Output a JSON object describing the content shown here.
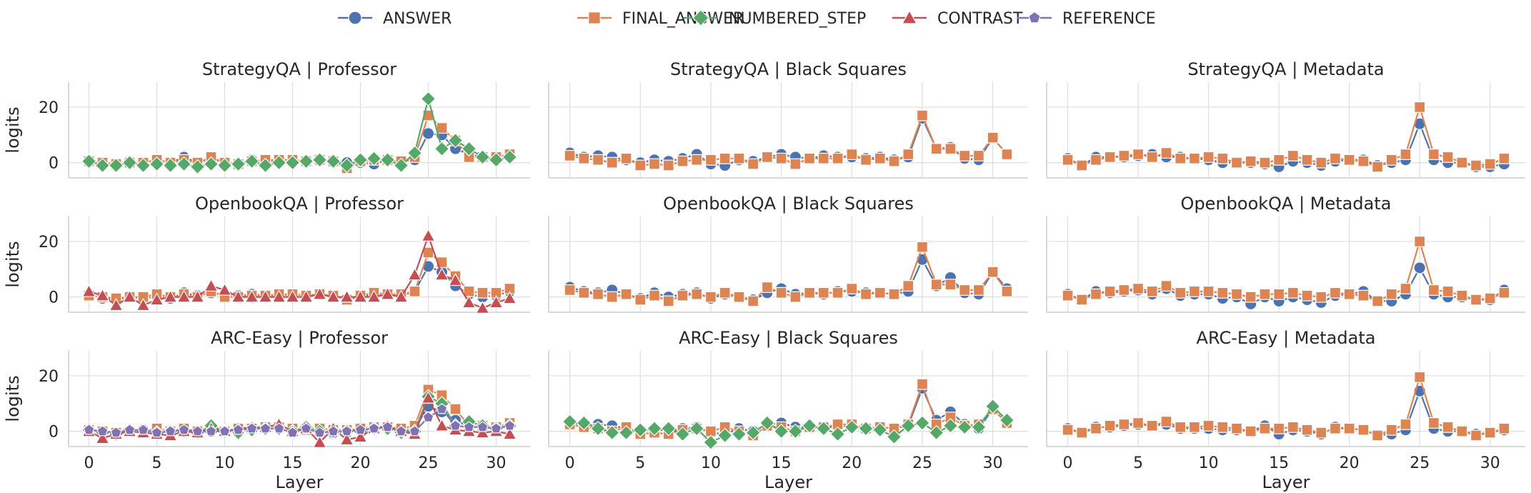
{
  "colors": {
    "ANSWER": "#4c72b0",
    "FINAL_ANSWER": "#dd8452",
    "NUMBERED_STEP": "#55a868",
    "CONTRAST": "#c44e52",
    "REFERENCE": "#8172b3",
    "grid": "#dddddd",
    "axis": "#cccccc"
  },
  "legend": [
    {
      "name": "ANSWER",
      "marker": "circle"
    },
    {
      "name": "FINAL_ANSWER",
      "marker": "square"
    },
    {
      "name": "NUMBERED_STEP",
      "marker": "diamond"
    },
    {
      "name": "CONTRAST",
      "marker": "triangle"
    },
    {
      "name": "REFERENCE",
      "marker": "pentagon"
    }
  ],
  "chart_data": [
    {
      "type": "line",
      "title": "StrategyQA | Professor",
      "xlabel": "",
      "ylabel": "logits",
      "xlim": [
        -1.5,
        32.5
      ],
      "ylim": [
        -5.5,
        29
      ],
      "xticks": [
        0,
        5,
        10,
        15,
        20,
        25,
        30
      ],
      "yticks": [
        0,
        20
      ],
      "grid": true,
      "series": [
        {
          "name": "ANSWER",
          "values": [
            0.5,
            0,
            -0.5,
            0,
            0,
            1,
            0,
            2,
            0,
            1.5,
            0,
            -0.5,
            1,
            0,
            1,
            1,
            0.5,
            1,
            0.5,
            0,
            0,
            -0.5,
            1,
            0.5,
            1,
            10.5,
            10,
            5,
            3,
            2,
            1,
            2
          ]
        },
        {
          "name": "FINAL_ANSWER",
          "values": [
            0.5,
            0,
            -0.5,
            0,
            0,
            1,
            0,
            1,
            0,
            2,
            0,
            -0.5,
            0.5,
            1,
            1,
            1,
            0.5,
            1,
            0.5,
            -2,
            0.5,
            1,
            1,
            0.5,
            2,
            17,
            12.5,
            8,
            2,
            2,
            2,
            3
          ]
        },
        {
          "name": "NUMBERED_STEP",
          "values": [
            0.5,
            -1,
            -1,
            0,
            -1,
            -0.5,
            -1,
            -0.5,
            -1.5,
            -0.5,
            -1,
            -0.5,
            0.5,
            -1,
            0,
            0,
            0.5,
            1,
            0.5,
            -1,
            1,
            1.5,
            1,
            -1,
            3.5,
            23,
            5,
            8,
            5,
            2,
            1,
            2
          ]
        }
      ]
    },
    {
      "type": "line",
      "title": "StrategyQA | Black Squares",
      "xlabel": "",
      "ylabel": "",
      "xlim": [
        -1.5,
        32.5
      ],
      "ylim": [
        -5.5,
        29
      ],
      "xticks": [
        0,
        5,
        10,
        15,
        20,
        25,
        30
      ],
      "yticks": [
        0,
        20
      ],
      "grid": true,
      "series": [
        {
          "name": "ANSWER",
          "values": [
            3.5,
            2,
            2.5,
            2,
            1,
            0,
            1,
            0.5,
            1.5,
            3,
            -0.5,
            -1,
            1,
            0.5,
            2,
            3,
            2,
            1.5,
            2.5,
            2,
            2,
            1.5,
            2,
            1,
            2,
            16,
            5,
            5.5,
            1.5,
            1,
            9,
            3
          ]
        },
        {
          "name": "FINAL_ANSWER",
          "values": [
            2.5,
            1.5,
            1,
            0,
            1.5,
            -1,
            -0.5,
            -1,
            0.5,
            1,
            1,
            1.5,
            1.5,
            -0.5,
            2,
            1.5,
            -0.5,
            1.5,
            1.5,
            1.5,
            3,
            1,
            1.5,
            0.5,
            3,
            17,
            5,
            5,
            2.5,
            2.5,
            9,
            3
          ]
        }
      ]
    },
    {
      "type": "line",
      "title": "StrategyQA | Metadata",
      "xlabel": "",
      "ylabel": "",
      "xlim": [
        -1.5,
        32.5
      ],
      "ylim": [
        -5.5,
        29
      ],
      "xticks": [
        0,
        5,
        10,
        15,
        20,
        25,
        30
      ],
      "yticks": [
        0,
        20
      ],
      "grid": true,
      "series": [
        {
          "name": "ANSWER",
          "values": [
            1.5,
            -1,
            2,
            2,
            2,
            2.5,
            3,
            2,
            2,
            1.5,
            1,
            0,
            0,
            0,
            -0.5,
            -1.5,
            0.5,
            0,
            -1,
            0.5,
            1,
            1,
            -1,
            0,
            1,
            14,
            1,
            0,
            0,
            -1.5,
            -1.5,
            -0.5
          ]
        },
        {
          "name": "FINAL_ANSWER",
          "values": [
            1,
            -1,
            1,
            2,
            2.5,
            3,
            2,
            3.5,
            1.5,
            1.5,
            2,
            1.5,
            0,
            0.5,
            0,
            1,
            2.5,
            1,
            0,
            1.5,
            1,
            0.5,
            -1.5,
            1,
            3,
            20,
            3,
            2,
            0,
            -1,
            -0.5,
            1.5
          ]
        }
      ]
    },
    {
      "type": "line",
      "title": "OpenbookQA | Professor",
      "xlabel": "",
      "ylabel": "logits",
      "xlim": [
        -1.5,
        32.5
      ],
      "ylim": [
        -5.5,
        29
      ],
      "xticks": [
        0,
        5,
        10,
        15,
        20,
        25,
        30
      ],
      "yticks": [
        0,
        20
      ],
      "grid": true,
      "series": [
        {
          "name": "ANSWER",
          "values": [
            1,
            -0.5,
            -1,
            0,
            -0.5,
            0,
            -0.5,
            1.5,
            0.5,
            1.5,
            1,
            0.5,
            1,
            0.5,
            0.5,
            1,
            0.5,
            1,
            0.5,
            -1,
            0,
            1,
            1,
            0.5,
            2,
            11,
            9,
            4,
            1,
            0,
            0.5,
            2
          ]
        },
        {
          "name": "FINAL_ANSWER",
          "values": [
            0.5,
            0,
            -0.5,
            0,
            0,
            1,
            0,
            1,
            0,
            2,
            0,
            0,
            0.5,
            0.5,
            1,
            1,
            0.5,
            1,
            0.5,
            -1,
            0.5,
            1.5,
            1,
            1,
            2,
            16,
            12.5,
            7.5,
            2,
            1.5,
            1.5,
            3
          ]
        },
        {
          "name": "CONTRAST",
          "values": [
            2,
            0.5,
            -3,
            0,
            -3,
            -1,
            0,
            0,
            0,
            4,
            2.5,
            0,
            0,
            0,
            0,
            0,
            0,
            1,
            0,
            0,
            0,
            0,
            1,
            0,
            8,
            22,
            8,
            6,
            -2,
            -4,
            -2,
            -0.5
          ]
        }
      ]
    },
    {
      "type": "line",
      "title": "OpenbookQA | Black Squares",
      "xlabel": "",
      "ylabel": "",
      "xlim": [
        -1.5,
        32.5
      ],
      "ylim": [
        -5.5,
        29
      ],
      "xticks": [
        0,
        5,
        10,
        15,
        20,
        25,
        30
      ],
      "yticks": [
        0,
        20
      ],
      "grid": true,
      "series": [
        {
          "name": "ANSWER",
          "values": [
            3.5,
            2,
            1.5,
            2.5,
            1,
            -0.5,
            1.5,
            0,
            1,
            1.5,
            -0.5,
            1,
            0,
            -1,
            1.5,
            3,
            1,
            1.5,
            1,
            2,
            2,
            1.5,
            1.5,
            1,
            2,
            13.5,
            4,
            7,
            1.5,
            1,
            9,
            3
          ]
        },
        {
          "name": "FINAL_ANSWER",
          "values": [
            2.5,
            1.5,
            1,
            0,
            1,
            -1,
            0.5,
            -1.5,
            0.5,
            1,
            0,
            1.5,
            0,
            -1.5,
            3.5,
            1.5,
            0,
            1.5,
            1.5,
            1.5,
            3,
            1,
            1.5,
            1,
            4,
            18,
            4.5,
            4.5,
            2.5,
            2.5,
            9,
            2
          ]
        }
      ]
    },
    {
      "type": "line",
      "title": "OpenbookQA | Metadata",
      "xlabel": "",
      "ylabel": "",
      "xlim": [
        -1.5,
        32.5
      ],
      "ylim": [
        -5.5,
        29
      ],
      "xticks": [
        0,
        5,
        10,
        15,
        20,
        25,
        30
      ],
      "yticks": [
        0,
        20
      ],
      "grid": true,
      "series": [
        {
          "name": "ANSWER",
          "values": [
            1,
            -1,
            2,
            1.5,
            2,
            2.5,
            1,
            3,
            0.5,
            1,
            1,
            -0.5,
            0,
            -2.5,
            0,
            -1.5,
            0,
            -1,
            -2,
            0.5,
            1,
            2,
            -1.5,
            -1.5,
            1,
            10.5,
            1,
            0,
            0,
            -1,
            -1,
            2.5
          ]
        },
        {
          "name": "FINAL_ANSWER",
          "values": [
            0.5,
            -1,
            1,
            2,
            2.5,
            3,
            2,
            4,
            1.5,
            2,
            2,
            1.5,
            1,
            0,
            1,
            1,
            1.5,
            0.5,
            0,
            1.5,
            1,
            0.5,
            -1.5,
            1,
            3,
            20,
            2.5,
            2,
            0.5,
            -1,
            -0.5,
            1.5
          ]
        }
      ]
    },
    {
      "type": "line",
      "title": "ARC-Easy | Professor",
      "xlabel": "Layer",
      "ylabel": "logits",
      "xlim": [
        -1.5,
        32.5
      ],
      "ylim": [
        -5.5,
        29
      ],
      "xticks": [
        0,
        5,
        10,
        15,
        20,
        25,
        30
      ],
      "yticks": [
        0,
        20
      ],
      "grid": true,
      "series": [
        {
          "name": "ANSWER",
          "values": [
            0.5,
            -0.5,
            -1,
            0,
            0.5,
            -1,
            0,
            0.5,
            -0.5,
            0,
            0,
            0.5,
            1,
            1,
            1,
            -0.5,
            1,
            -0.5,
            -0.5,
            -0.5,
            0.5,
            1,
            1.5,
            0,
            1,
            9,
            7,
            4,
            2,
            2,
            1,
            2.5
          ]
        },
        {
          "name": "FINAL_ANSWER",
          "values": [
            0.5,
            0,
            -0.5,
            0,
            0,
            1,
            0,
            1,
            0,
            1,
            0,
            1,
            1,
            1.5,
            1.5,
            1,
            0.5,
            1,
            0.5,
            0.5,
            1,
            1.5,
            1.5,
            1,
            2,
            15,
            13,
            8,
            2,
            2,
            1.5,
            3
          ]
        },
        {
          "name": "NUMBERED_STEP",
          "values": [
            0.5,
            -0.5,
            -1,
            0.5,
            0,
            -0.5,
            0,
            0,
            -0.5,
            2,
            0,
            -0.5,
            0.5,
            1,
            1,
            0,
            1.5,
            0,
            0,
            0,
            0,
            1,
            1,
            -0.5,
            0,
            12.5,
            10,
            2,
            3.5,
            2,
            1,
            2
          ]
        },
        {
          "name": "CONTRAST",
          "values": [
            0,
            -2.5,
            -1,
            0,
            -0.5,
            -1,
            -1.5,
            0,
            -0.5,
            1,
            0,
            1,
            1.5,
            1.5,
            2.5,
            0,
            1,
            -4,
            1,
            -3,
            -2,
            1,
            2,
            0,
            -1,
            12,
            2,
            0.5,
            0,
            -0.5,
            0,
            -1
          ]
        },
        {
          "name": "REFERENCE",
          "values": [
            0.5,
            0,
            -0.5,
            0.5,
            0.5,
            -0.5,
            0,
            0.5,
            0,
            0,
            0,
            0.5,
            1,
            1,
            1,
            -0.5,
            1,
            -0.5,
            0,
            0,
            0.5,
            1,
            1.5,
            0,
            0,
            5,
            8,
            2,
            1.5,
            1.5,
            1,
            2
          ]
        }
      ]
    },
    {
      "type": "line",
      "title": "ARC-Easy | Black Squares",
      "xlabel": "Layer",
      "ylabel": "",
      "xlim": [
        -1.5,
        32.5
      ],
      "ylim": [
        -5.5,
        29
      ],
      "xticks": [
        0,
        5,
        10,
        15,
        20,
        25,
        30
      ],
      "yticks": [
        0,
        20
      ],
      "grid": true,
      "series": [
        {
          "name": "ANSWER",
          "values": [
            3.5,
            2,
            2.5,
            2,
            1,
            0,
            1,
            0,
            1,
            1.5,
            -0.5,
            -1,
            1,
            0,
            2.5,
            3,
            1.5,
            1.5,
            1,
            2,
            1.5,
            1,
            1.5,
            1,
            2,
            15.5,
            4,
            7,
            2.5,
            1,
            8,
            3
          ]
        },
        {
          "name": "FINAL_ANSWER",
          "values": [
            2.5,
            1.5,
            1,
            0,
            1.5,
            -1,
            -0.5,
            -1,
            0.5,
            1,
            0,
            1.5,
            0,
            -1.5,
            2,
            1.5,
            0,
            1.5,
            1.5,
            2.5,
            2.5,
            1,
            1.5,
            1,
            2.5,
            17,
            2.5,
            5,
            2,
            2.5,
            8,
            3
          ]
        },
        {
          "name": "NUMBERED_STEP",
          "values": [
            3.5,
            3,
            1,
            -0.5,
            -0.5,
            0.5,
            1,
            1,
            -1,
            1,
            -4,
            -1.5,
            -1,
            -0.5,
            3,
            0,
            0,
            2,
            1,
            -1,
            1.5,
            1,
            0.5,
            -2,
            2,
            3,
            -0.5,
            2,
            1.5,
            1.5,
            9,
            4
          ]
        }
      ]
    },
    {
      "type": "line",
      "title": "ARC-Easy | Metadata",
      "xlabel": "Layer",
      "ylabel": "",
      "xlim": [
        -1.5,
        32.5
      ],
      "ylim": [
        -5.5,
        29
      ],
      "xticks": [
        0,
        5,
        10,
        15,
        20,
        25,
        30
      ],
      "yticks": [
        0,
        20
      ],
      "grid": true,
      "series": [
        {
          "name": "ANSWER",
          "values": [
            1,
            -0.5,
            1.5,
            1.5,
            2,
            2.5,
            2,
            2.5,
            1,
            1,
            1,
            0.5,
            0.5,
            0,
            2,
            -1,
            0.5,
            0,
            -1,
            1.5,
            1,
            0.5,
            -1.5,
            -1,
            0.5,
            14.5,
            1,
            0,
            0,
            -1,
            -0.5,
            0.5
          ]
        },
        {
          "name": "FINAL_ANSWER",
          "values": [
            0.5,
            -0.5,
            1,
            2,
            2.5,
            3,
            2,
            3.5,
            1.5,
            1.5,
            2,
            1.5,
            1,
            0,
            1,
            1,
            1.5,
            0.5,
            -0.5,
            1,
            1,
            0.5,
            -1.5,
            0.5,
            2.5,
            19.5,
            3,
            1.5,
            0,
            -1.5,
            -0.5,
            1
          ]
        }
      ]
    }
  ]
}
